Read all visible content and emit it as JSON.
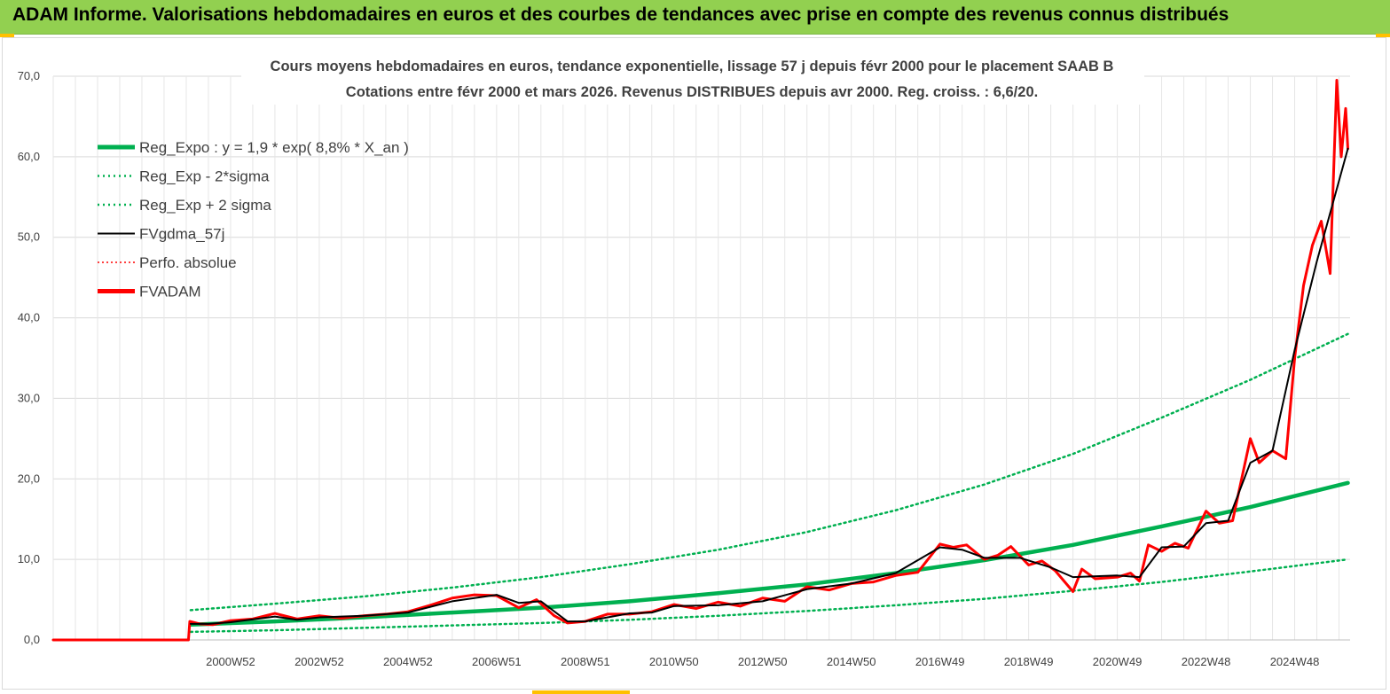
{
  "header": {
    "title": "ADAM Informe. Valorisations hebdomadaires en euros et des courbes de tendances avec prise en compte des revenus connus distribués"
  },
  "chart_data": {
    "type": "line",
    "title_line1": "Cours moyens hebdomadaires en euros, tendance exponentielle, lissage 57 j depuis févr 2000 pour le placement SAAB B",
    "title_line2": "Cotations entre févr 2000 et mars 2026. Revenus DISTRIBUES depuis avr 2000. Reg. croiss. : 6,6/20.",
    "ylim": [
      0,
      70
    ],
    "yticks": [
      "0,0",
      "10,0",
      "20,0",
      "30,0",
      "40,0",
      "50,0",
      "60,0",
      "70,0"
    ],
    "xlim": [
      1997,
      2026.25
    ],
    "xticks": [
      {
        "label": "2000W52",
        "year": 2001.0
      },
      {
        "label": "2002W52",
        "year": 2003.0
      },
      {
        "label": "2004W52",
        "year": 2005.0
      },
      {
        "label": "2006W51",
        "year": 2007.0
      },
      {
        "label": "2008W51",
        "year": 2009.0
      },
      {
        "label": "2010W50",
        "year": 2011.0
      },
      {
        "label": "2012W50",
        "year": 2013.0
      },
      {
        "label": "2014W50",
        "year": 2015.0
      },
      {
        "label": "2016W49",
        "year": 2017.0
      },
      {
        "label": "2018W49",
        "year": 2019.0
      },
      {
        "label": "2020W49",
        "year": 2021.0
      },
      {
        "label": "2022W48",
        "year": 2023.0
      },
      {
        "label": "2024W48",
        "year": 2025.0
      }
    ],
    "legend": [
      {
        "key": "reg_expo",
        "label": "Reg_Expo : y = 1,9 * exp( 8,8% *  X_an )",
        "color": "#00b050",
        "style": "solid-thick"
      },
      {
        "key": "reg_minus",
        "label": "Reg_Exp - 2*sigma",
        "color": "#00b050",
        "style": "dotted"
      },
      {
        "key": "reg_plus",
        "label": "Reg_Exp + 2 sigma",
        "color": "#00b050",
        "style": "dotted"
      },
      {
        "key": "fvgdma",
        "label": "FVgdma_57j",
        "color": "#000000",
        "style": "solid"
      },
      {
        "key": "perfo",
        "label": "Perfo. absolue",
        "color": "#ff0000",
        "style": "dotted"
      },
      {
        "key": "fvadam",
        "label": "FVADAM",
        "color": "#ff0000",
        "style": "solid-thick"
      }
    ],
    "series": [
      {
        "name": "Reg_Expo",
        "x": [
          2000.1,
          2002,
          2004,
          2006,
          2008,
          2010,
          2012,
          2014,
          2016,
          2018,
          2020,
          2022,
          2024,
          2026.2
        ],
        "values": [
          1.9,
          2.3,
          2.8,
          3.4,
          4.0,
          4.8,
          5.8,
          6.9,
          8.3,
          9.9,
          11.8,
          14.1,
          16.5,
          19.5
        ]
      },
      {
        "name": "Reg_Exp - 2*sigma",
        "x": [
          2000.1,
          2002,
          2004,
          2006,
          2008,
          2010,
          2012,
          2014,
          2016,
          2018,
          2020,
          2022,
          2024,
          2026.2
        ],
        "values": [
          1.0,
          1.2,
          1.5,
          1.8,
          2.1,
          2.5,
          3.0,
          3.6,
          4.3,
          5.1,
          6.1,
          7.2,
          8.5,
          10.0
        ]
      },
      {
        "name": "Reg_Exp + 2 sigma",
        "x": [
          2000.1,
          2002,
          2004,
          2006,
          2008,
          2010,
          2012,
          2014,
          2016,
          2018,
          2020,
          2022,
          2024,
          2026.2
        ],
        "values": [
          3.7,
          4.5,
          5.4,
          6.5,
          7.8,
          9.4,
          11.2,
          13.4,
          16.1,
          19.3,
          23.1,
          27.6,
          32.3,
          38.0
        ]
      },
      {
        "name": "FVgdma_57j",
        "x": [
          2000.1,
          2000.5,
          2001,
          2002,
          2002.5,
          2003,
          2004,
          2005,
          2006,
          2007,
          2007.5,
          2008,
          2008.6,
          2009,
          2010,
          2010.5,
          2011,
          2012,
          2013,
          2014,
          2015,
          2016,
          2017,
          2017.5,
          2018,
          2018.8,
          2019.5,
          2020,
          2021,
          2021.5,
          2022,
          2022.5,
          2023,
          2023.5,
          2024,
          2024.5,
          2025,
          2025.5,
          2026.2
        ],
        "values": [
          2.0,
          2.0,
          2.2,
          2.9,
          2.5,
          2.8,
          3.0,
          3.4,
          4.8,
          5.6,
          4.6,
          4.8,
          2.3,
          2.3,
          3.3,
          3.4,
          4.2,
          4.3,
          4.8,
          6.3,
          7.0,
          8.3,
          11.5,
          11.2,
          10.2,
          10.2,
          9.0,
          7.8,
          8.0,
          7.8,
          11.5,
          11.6,
          14.5,
          14.8,
          22.0,
          23.5,
          36.0,
          47.0,
          61.0
        ]
      },
      {
        "name": "FVADAM",
        "x": [
          1997.0,
          2000.05,
          2000.08,
          2000.3,
          2000.6,
          2001,
          2001.5,
          2002,
          2002.5,
          2003,
          2003.5,
          2004,
          2004.5,
          2005,
          2005.5,
          2006,
          2006.5,
          2007,
          2007.5,
          2007.9,
          2008.3,
          2008.6,
          2009,
          2009.5,
          2010,
          2010.5,
          2011,
          2011.5,
          2012,
          2012.5,
          2013,
          2013.5,
          2014,
          2014.5,
          2015,
          2015.5,
          2016,
          2016.5,
          2017,
          2017.3,
          2017.6,
          2018,
          2018.3,
          2018.6,
          2019,
          2019.3,
          2019.6,
          2020,
          2020.2,
          2020.5,
          2021,
          2021.3,
          2021.5,
          2021.7,
          2022,
          2022.3,
          2022.6,
          2023,
          2023.3,
          2023.6,
          2024,
          2024.2,
          2024.5,
          2024.8,
          2025,
          2025.2,
          2025.4,
          2025.6,
          2025.8,
          2025.95,
          2026.05,
          2026.15,
          2026.2
        ],
        "values": [
          0.0,
          0.0,
          2.3,
          2.0,
          1.9,
          2.4,
          2.6,
          3.3,
          2.6,
          3.0,
          2.7,
          3.0,
          3.2,
          3.5,
          4.3,
          5.2,
          5.6,
          5.5,
          4.0,
          5.0,
          3.0,
          2.1,
          2.3,
          3.2,
          3.2,
          3.5,
          4.4,
          3.9,
          4.7,
          4.2,
          5.2,
          4.8,
          6.6,
          6.2,
          7.0,
          7.2,
          8.0,
          8.4,
          11.9,
          11.5,
          11.8,
          10.0,
          10.5,
          11.6,
          9.3,
          9.8,
          8.6,
          6.0,
          8.8,
          7.6,
          7.8,
          8.3,
          7.3,
          11.8,
          11.0,
          12.0,
          11.4,
          16.0,
          14.5,
          14.8,
          25.0,
          22.0,
          23.5,
          22.5,
          35.0,
          44.0,
          49.0,
          52.0,
          45.5,
          69.5,
          60.0,
          66.0,
          61.0
        ]
      },
      {
        "name": "Perfo. absolue",
        "x": [
          1997.0,
          2000.05
        ],
        "values": [
          0.0,
          0.0
        ]
      }
    ]
  }
}
